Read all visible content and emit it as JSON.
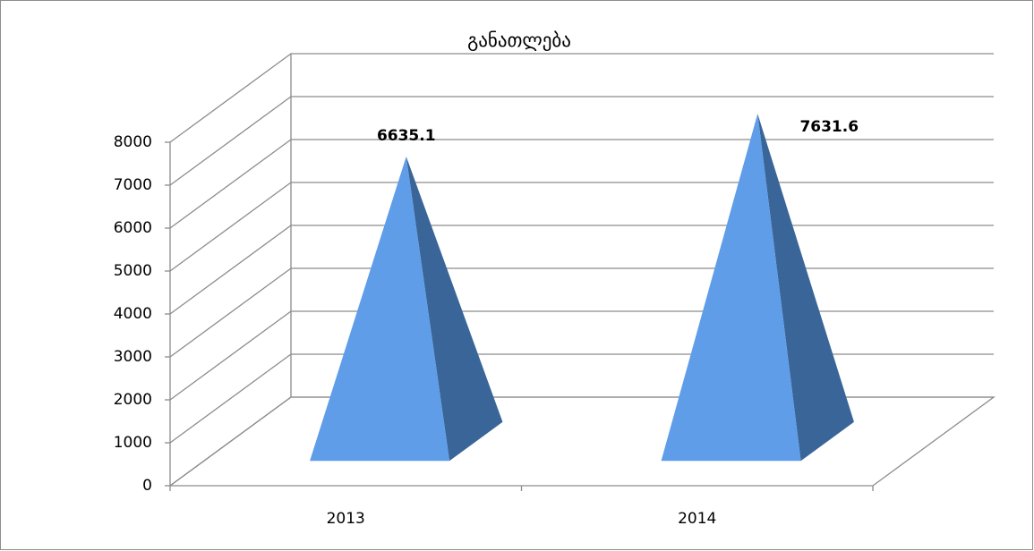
{
  "chart_data": {
    "type": "pyramid3d",
    "title": "განათლება",
    "categories": [
      "2013",
      "2014"
    ],
    "values": [
      6635.1,
      7631.6
    ],
    "color": "#5f9de8",
    "side_color": "#3a6598",
    "ylim": [
      0,
      8000
    ],
    "yticks": [
      0,
      1000,
      2000,
      3000,
      4000,
      5000,
      6000,
      7000,
      8000
    ],
    "grid": true
  }
}
